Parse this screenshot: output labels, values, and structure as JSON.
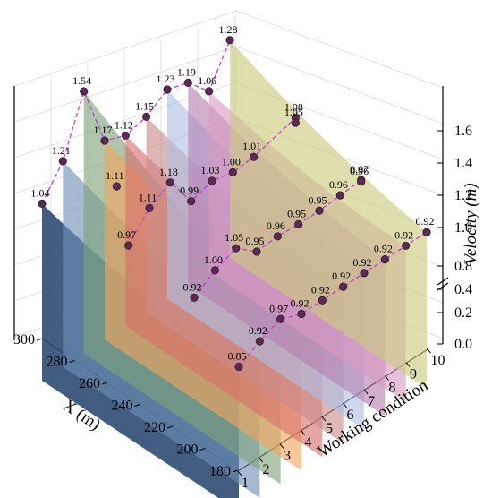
{
  "chart_data": {
    "type": "area",
    "xlabel": "X (m)",
    "ylabel": "Velocity (m)",
    "zlabel": "Working condition",
    "x_ticks": [
      "300",
      "280",
      "260",
      "240",
      "220",
      "200",
      "180"
    ],
    "y_ticks": [
      "0.0",
      "0.2",
      "0.4",
      "0.8",
      "1.0",
      "1.2",
      "1.4",
      "1.6"
    ],
    "z_ticks": [
      "1",
      "2",
      "3",
      "4",
      "5",
      "6",
      "7",
      "8",
      "9",
      "10"
    ],
    "ylim": [
      0.0,
      1.6
    ],
    "axis_break": true,
    "colors": [
      "#2f4b73",
      "#6e8fb5",
      "#7ea37b",
      "#f2a45c",
      "#d9706a",
      "#c98a8a",
      "#aebfe3",
      "#b47fb0",
      "#d89ac3",
      "#c9cc7a"
    ],
    "series": [
      {
        "name": "1",
        "labels": [
          {
            "x": 300,
            "v": "1.04"
          },
          {
            "x": 180,
            "v": "0.85"
          }
        ]
      },
      {
        "name": "2",
        "labels": [
          {
            "x": 300,
            "v": "1.21"
          },
          {
            "x": 260,
            "v": "0.97"
          },
          {
            "x": 220,
            "v": "0.92"
          },
          {
            "x": 180,
            "v": "0.92"
          }
        ]
      },
      {
        "name": "3",
        "labels": [
          {
            "x": 300,
            "v": "1.54"
          },
          {
            "x": 280,
            "v": "1.11"
          },
          {
            "x": 260,
            "v": "1.11"
          },
          {
            "x": 220,
            "v": "1.00"
          },
          {
            "x": 180,
            "v": "0.97"
          }
        ]
      },
      {
        "name": "4",
        "labels": [
          {
            "x": 300,
            "v": "1.17"
          },
          {
            "x": 260,
            "v": "1.18"
          },
          {
            "x": 220,
            "v": "1.05"
          },
          {
            "x": 180,
            "v": "0.92"
          }
        ]
      },
      {
        "name": "5",
        "labels": [
          {
            "x": 300,
            "v": "1.12"
          },
          {
            "x": 260,
            "v": "0.99"
          },
          {
            "x": 220,
            "v": "0.95"
          },
          {
            "x": 180,
            "v": "0.92"
          }
        ]
      },
      {
        "name": "6",
        "labels": [
          {
            "x": 300,
            "v": "1.15"
          },
          {
            "x": 260,
            "v": "1.03"
          },
          {
            "x": 220,
            "v": "0.96"
          },
          {
            "x": 180,
            "v": "0.92"
          }
        ]
      },
      {
        "name": "7",
        "labels": [
          {
            "x": 300,
            "v": "1.23"
          },
          {
            "x": 260,
            "v": "1.00"
          },
          {
            "x": 220,
            "v": "0.95"
          },
          {
            "x": 180,
            "v": "0.92"
          }
        ]
      },
      {
        "name": "8",
        "labels": [
          {
            "x": 300,
            "v": "1.19"
          },
          {
            "x": 260,
            "v": "1.01"
          },
          {
            "x": 220,
            "v": "0.95"
          },
          {
            "x": 180,
            "v": "0.92"
          }
        ]
      },
      {
        "name": "9",
        "labels": [
          {
            "x": 300,
            "v": "1.06"
          },
          {
            "x": 220,
            "v": "0.96"
          },
          {
            "x": 180,
            "v": "0.92"
          }
        ]
      },
      {
        "name": "10",
        "labels": [
          {
            "x": 300,
            "v": "1.28"
          },
          {
            "x": 260,
            "v": "1.08"
          },
          {
            "x": 260,
            "v": "1.05"
          },
          {
            "x": 220,
            "v": "0.97"
          },
          {
            "x": 220,
            "v": "0.96"
          },
          {
            "x": 180,
            "v": "0.92"
          }
        ]
      }
    ]
  }
}
